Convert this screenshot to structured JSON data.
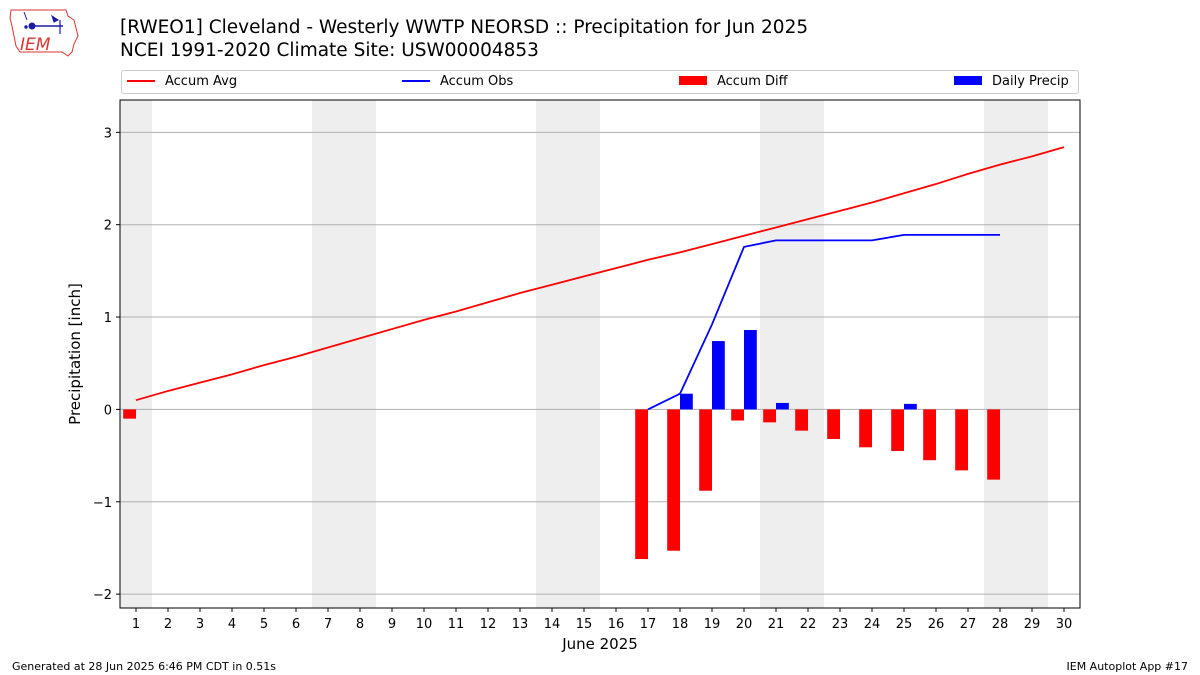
{
  "header": {
    "title_line1": "[RWEO1] Cleveland - Westerly WWTP NEORSD :: Precipitation for Jun 2025",
    "title_line2": "NCEI 1991-2020 Climate Site: USW00004853"
  },
  "logo": {
    "text": "IEM"
  },
  "footer": {
    "left": "Generated at 28 Jun 2025 6:46 PM CDT in 0.51s",
    "right": "IEM Autoplot App #17"
  },
  "legend": {
    "items": [
      {
        "label": "Accum Avg",
        "kind": "line",
        "color": "#ff0000"
      },
      {
        "label": "Accum Obs",
        "kind": "line",
        "color": "#0000ff"
      },
      {
        "label": "Accum Diff",
        "kind": "bar",
        "color": "#ff0000"
      },
      {
        "label": "Daily Precip",
        "kind": "bar",
        "color": "#0000ff"
      }
    ]
  },
  "chart_data": {
    "type": "bar",
    "xlabel": "June 2025",
    "ylabel": "Precipitation [inch]",
    "ylim": [
      -2.15,
      3.35
    ],
    "xlim": [
      0.5,
      30.5
    ],
    "yticks": [
      -2,
      -1,
      0,
      1,
      2,
      3
    ],
    "ytick_labels": [
      "−2",
      "−1",
      "0",
      "1",
      "2",
      "3"
    ],
    "x": [
      1,
      2,
      3,
      4,
      5,
      6,
      7,
      8,
      9,
      10,
      11,
      12,
      13,
      14,
      15,
      16,
      17,
      18,
      19,
      20,
      21,
      22,
      23,
      24,
      25,
      26,
      27,
      28,
      29,
      30
    ],
    "xtick_labels": [
      "1",
      "2",
      "3",
      "4",
      "5",
      "6",
      "7",
      "8",
      "9",
      "10",
      "11",
      "12",
      "13",
      "14",
      "15",
      "16",
      "17",
      "18",
      "19",
      "20",
      "21",
      "22",
      "23",
      "24",
      "25",
      "26",
      "27",
      "28",
      "29",
      "30"
    ],
    "weekend_shading": [
      [
        0.5,
        1.5
      ],
      [
        6.5,
        8.5
      ],
      [
        13.5,
        15.5
      ],
      [
        20.5,
        22.5
      ],
      [
        27.5,
        29.5
      ]
    ],
    "grid": "horizontal",
    "series": [
      {
        "name": "Accum Avg",
        "kind": "line",
        "color": "#ff0000",
        "x": [
          1,
          2,
          3,
          4,
          5,
          6,
          7,
          8,
          9,
          10,
          11,
          12,
          13,
          14,
          15,
          16,
          17,
          18,
          19,
          20,
          21,
          22,
          23,
          24,
          25,
          26,
          27,
          28,
          29,
          30
        ],
        "values": [
          0.1,
          0.2,
          0.29,
          0.38,
          0.48,
          0.57,
          0.67,
          0.77,
          0.87,
          0.97,
          1.06,
          1.16,
          1.26,
          1.35,
          1.44,
          1.53,
          1.62,
          1.7,
          1.79,
          1.88,
          1.97,
          2.06,
          2.15,
          2.24,
          2.34,
          2.44,
          2.55,
          2.65,
          2.74,
          2.84
        ]
      },
      {
        "name": "Accum Obs",
        "kind": "line",
        "color": "#0000ff",
        "x": [
          17,
          18,
          19,
          20,
          21,
          22,
          23,
          24,
          25,
          26,
          27,
          28
        ],
        "values": [
          0.0,
          0.17,
          0.92,
          1.76,
          1.83,
          1.83,
          1.83,
          1.83,
          1.89,
          1.89,
          1.89,
          1.89
        ]
      },
      {
        "name": "Accum Diff",
        "kind": "bar",
        "color": "#ff0000",
        "offset": -0.2,
        "x": [
          1,
          17,
          18,
          19,
          20,
          21,
          22,
          23,
          24,
          25,
          26,
          27,
          28
        ],
        "values": [
          -0.1,
          -1.62,
          -1.53,
          -0.88,
          -0.12,
          -0.14,
          -0.23,
          -0.32,
          -0.41,
          -0.45,
          -0.55,
          -0.66,
          -0.76
        ]
      },
      {
        "name": "Daily Precip",
        "kind": "bar",
        "color": "#0000ff",
        "offset": 0.2,
        "x": [
          18,
          19,
          20,
          21,
          25
        ],
        "values": [
          0.17,
          0.74,
          0.86,
          0.07,
          0.06
        ]
      }
    ]
  }
}
